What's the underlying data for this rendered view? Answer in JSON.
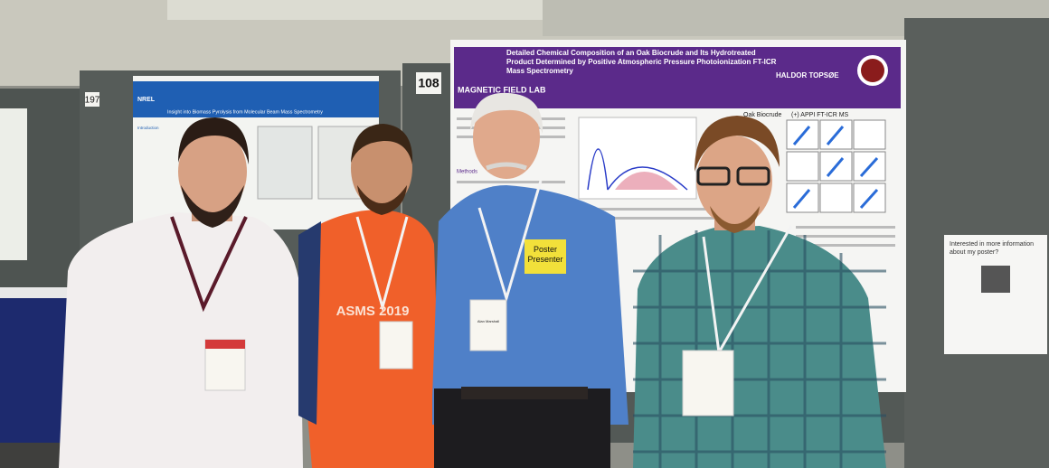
{
  "scene": {
    "booth_numbers": [
      "197",
      "108"
    ],
    "posters": [
      {
        "logo": "NREL",
        "title": "Insight into Biomass Pyrolysis from Molecular Beam Mass Spectrometry",
        "section": "Introduction"
      },
      {
        "logo": "MAGNETIC FIELD LAB",
        "sponsor": "HALDOR TOPSØE",
        "title": "Detailed Chemical Composition of an Oak Biocrude and Its Hydrotreated Product Determined by Positive Atmospheric Pressure Photoionization FT-ICR Mass Spectrometry",
        "panel_left": "Oak Biocrude",
        "panel_right": "(+) APPI FT-ICR MS",
        "section": "Methods"
      }
    ],
    "ribbon": "Poster Presenter",
    "shirt_text": "ASMS 2019",
    "badge_name": "Alan Marshall",
    "sign": "Interested in more information about my poster?"
  }
}
